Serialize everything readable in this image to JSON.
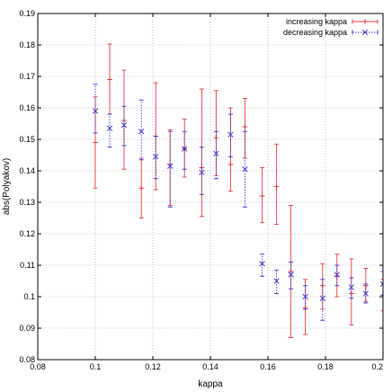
{
  "chart_data": {
    "type": "scatter",
    "title": "",
    "xlabel": "kappa",
    "ylabel": "abs(Polyakov)",
    "xlim": [
      0.08,
      0.2
    ],
    "ylim": [
      0.08,
      0.19
    ],
    "xticks": [
      "0.08",
      "0.1",
      "0.12",
      "0.14",
      "0.16",
      "0.18",
      "0.2"
    ],
    "yticks": [
      "0.08",
      "0.09",
      "0.1",
      "0.11",
      "0.12",
      "0.13",
      "0.14",
      "0.15",
      "0.16",
      "0.17",
      "0.18",
      "0.19"
    ],
    "grid": true,
    "legend_position": "top-right",
    "series": [
      {
        "name": "increasing kappa",
        "color": "#e8393c",
        "marker": "plus",
        "line_style": "solid",
        "points": [
          {
            "x": 0.1,
            "y": 0.149,
            "ylow": 0.1345,
            "yhigh": 0.1635
          },
          {
            "x": 0.105,
            "y": 0.169,
            "ylow": 0.158,
            "yhigh": 0.1803
          },
          {
            "x": 0.11,
            "y": 0.156,
            "ylow": 0.1405,
            "yhigh": 0.172
          },
          {
            "x": 0.116,
            "y": 0.1345,
            "ylow": 0.125,
            "yhigh": 0.144
          },
          {
            "x": 0.121,
            "y": 0.151,
            "ylow": 0.134,
            "yhigh": 0.168
          },
          {
            "x": 0.126,
            "y": 0.142,
            "ylow": 0.129,
            "yhigh": 0.153
          },
          {
            "x": 0.131,
            "y": 0.147,
            "ylow": 0.138,
            "yhigh": 0.1565
          },
          {
            "x": 0.137,
            "y": 0.141,
            "ylow": 0.1255,
            "yhigh": 0.166
          },
          {
            "x": 0.142,
            "y": 0.1505,
            "ylow": 0.1385,
            "yhigh": 0.1655
          },
          {
            "x": 0.147,
            "y": 0.142,
            "ylow": 0.1335,
            "yhigh": 0.16
          },
          {
            "x": 0.152,
            "y": 0.154,
            "ylow": 0.144,
            "yhigh": 0.163
          },
          {
            "x": 0.158,
            "y": 0.132,
            "ylow": 0.1235,
            "yhigh": 0.141
          },
          {
            "x": 0.163,
            "y": 0.135,
            "ylow": 0.123,
            "yhigh": 0.1485
          },
          {
            "x": 0.168,
            "y": 0.108,
            "ylow": 0.087,
            "yhigh": 0.129
          },
          {
            "x": 0.173,
            "y": 0.0965,
            "ylow": 0.088,
            "yhigh": 0.1055
          },
          {
            "x": 0.179,
            "y": 0.1035,
            "ylow": 0.096,
            "yhigh": 0.1105
          },
          {
            "x": 0.184,
            "y": 0.1065,
            "ylow": 0.1,
            "yhigh": 0.1135
          },
          {
            "x": 0.189,
            "y": 0.101,
            "ylow": 0.091,
            "yhigh": 0.112
          },
          {
            "x": 0.194,
            "y": 0.1035,
            "ylow": 0.0985,
            "yhigh": 0.109
          },
          {
            "x": 0.2,
            "y": 0.1005,
            "ylow": 0.0955,
            "yhigh": 0.1055
          }
        ]
      },
      {
        "name": "decreasing kappa",
        "color": "#3535d8",
        "marker": "x",
        "line_style": "dotted",
        "points": [
          {
            "x": 0.1,
            "y": 0.159,
            "ylow": 0.152,
            "yhigh": 0.1675
          },
          {
            "x": 0.105,
            "y": 0.1535,
            "ylow": 0.1475,
            "yhigh": 0.158
          },
          {
            "x": 0.11,
            "y": 0.1545,
            "ylow": 0.148,
            "yhigh": 0.1605
          },
          {
            "x": 0.116,
            "y": 0.1525,
            "ylow": 0.1435,
            "yhigh": 0.1625
          },
          {
            "x": 0.121,
            "y": 0.1445,
            "ylow": 0.1375,
            "yhigh": 0.151
          },
          {
            "x": 0.126,
            "y": 0.1415,
            "ylow": 0.1285,
            "yhigh": 0.1525
          },
          {
            "x": 0.131,
            "y": 0.147,
            "ylow": 0.1405,
            "yhigh": 0.1525
          },
          {
            "x": 0.137,
            "y": 0.1395,
            "ylow": 0.1325,
            "yhigh": 0.1475
          },
          {
            "x": 0.142,
            "y": 0.1455,
            "ylow": 0.1375,
            "yhigh": 0.1525
          },
          {
            "x": 0.147,
            "y": 0.1515,
            "ylow": 0.1445,
            "yhigh": 0.158
          },
          {
            "x": 0.152,
            "y": 0.1405,
            "ylow": 0.1285,
            "yhigh": 0.1525
          },
          {
            "x": 0.158,
            "y": 0.1105,
            "ylow": 0.1065,
            "yhigh": 0.1135
          },
          {
            "x": 0.163,
            "y": 0.105,
            "ylow": 0.101,
            "yhigh": 0.1085
          },
          {
            "x": 0.168,
            "y": 0.107,
            "ylow": 0.1025,
            "yhigh": 0.111
          },
          {
            "x": 0.173,
            "y": 0.1,
            "ylow": 0.096,
            "yhigh": 0.1035
          },
          {
            "x": 0.179,
            "y": 0.0995,
            "ylow": 0.0925,
            "yhigh": 0.1055
          },
          {
            "x": 0.184,
            "y": 0.107,
            "ylow": 0.1035,
            "yhigh": 0.11
          },
          {
            "x": 0.189,
            "y": 0.103,
            "ylow": 0.0995,
            "yhigh": 0.106
          },
          {
            "x": 0.194,
            "y": 0.101,
            "ylow": 0.098,
            "yhigh": 0.104
          },
          {
            "x": 0.2,
            "y": 0.104,
            "ylow": 0.1005,
            "yhigh": 0.108
          }
        ]
      }
    ]
  }
}
